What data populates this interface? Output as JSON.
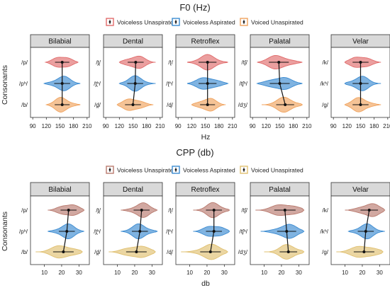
{
  "chart_data": [
    {
      "type": "violin",
      "title": "F0 (Hz)",
      "xlabel": "Hz",
      "ylabel": "Consonants",
      "xlim": [
        85,
        215
      ],
      "xticks": [
        90,
        120,
        150,
        180,
        210
      ],
      "grid": false,
      "legend_placement": "top-center",
      "colors": {
        "Voiceless Unaspirated": "#e06b6b",
        "Voiceless Aspirated": "#3b8bd1",
        "Voiced Unaspirated": "#f0a35e"
      },
      "series_names": [
        "Voiceless Unaspirated",
        "Voiceless Aspirated",
        "Voiced Unaspirated"
      ],
      "panels": [
        {
          "title": "Bilabial",
          "labels": [
            "/p/",
            "/pʰ/",
            "/b/"
          ],
          "medians": [
            155,
            155,
            155
          ],
          "ranges": [
            [
              118,
              190
            ],
            [
              115,
              195
            ],
            [
              120,
              195
            ]
          ]
        },
        {
          "title": "Dental",
          "labels": [
            "/t̪/",
            "/t̪ʰ/",
            "/d̪/"
          ],
          "medians": [
            156,
            155,
            150
          ],
          "ranges": [
            [
              120,
              200
            ],
            [
              120,
              200
            ],
            [
              115,
              195
            ]
          ]
        },
        {
          "title": "Retroflex",
          "labels": [
            "/ʈ/",
            "/ʈʰ/",
            "/ɖ/"
          ],
          "medians": [
            155,
            155,
            155
          ],
          "ranges": [
            [
              110,
              200
            ],
            [
              110,
              200
            ],
            [
              120,
              195
            ]
          ]
        },
        {
          "title": "Palatal",
          "labels": [
            "/tʃ/",
            "/tʃʰ/",
            "/dʒ/"
          ],
          "medians": [
            148,
            150,
            162
          ],
          "ranges": [
            [
              100,
              200
            ],
            [
              100,
              200
            ],
            [
              110,
              200
            ]
          ]
        },
        {
          "title": "Velar",
          "labels": [
            "/k/",
            "/kʰ/",
            "/g/"
          ],
          "medians": [
            150,
            150,
            150
          ],
          "ranges": [
            [
              115,
              195
            ],
            [
              115,
              195
            ],
            [
              115,
              195
            ]
          ]
        }
      ]
    },
    {
      "type": "violin",
      "title": "CPP (db)",
      "xlabel": "db",
      "ylabel": "Consonants",
      "xlim": [
        2,
        36
      ],
      "xticks": [
        10,
        20,
        30
      ],
      "grid": false,
      "legend_placement": "top-center",
      "colors": {
        "Voiceless Unaspirated": "#b97a6e",
        "Voiceless Aspirated": "#3b8bd1",
        "Voiced Unaspirated": "#e0c070"
      },
      "series_names": [
        "Voiceless Unaspirated",
        "Voiceless Aspirated",
        "Voiced Unaspirated"
      ],
      "panels": [
        {
          "title": "Bilabial",
          "labels": [
            "/p/",
            "/pʰ/",
            "/b/"
          ],
          "medians": [
            24,
            23,
            21
          ],
          "ranges": [
            [
              12,
              33
            ],
            [
              12,
              33
            ],
            [
              5,
              32
            ]
          ]
        },
        {
          "title": "Dental",
          "labels": [
            "/t̪/",
            "/t̪ʰ/",
            "/d̪/"
          ],
          "medians": [
            24,
            23,
            21
          ],
          "ranges": [
            [
              12,
              33
            ],
            [
              12,
              33
            ],
            [
              5,
              32
            ]
          ]
        },
        {
          "title": "Retroflex",
          "labels": [
            "/ʈ/",
            "/ʈʰ/",
            "/ɖ/"
          ],
          "medians": [
            24,
            24,
            22
          ],
          "ranges": [
            [
              12,
              33
            ],
            [
              12,
              33
            ],
            [
              5,
              32
            ]
          ]
        },
        {
          "title": "Palatal",
          "labels": [
            "/tʃ/",
            "/tʃʰ/",
            "/dʒ/"
          ],
          "medians": [
            22,
            23,
            24
          ],
          "ranges": [
            [
              5,
              33
            ],
            [
              8,
              33
            ],
            [
              10,
              33
            ]
          ]
        },
        {
          "title": "Velar",
          "labels": [
            "/k/",
            "/kʰ/",
            "/g/"
          ],
          "medians": [
            24,
            22,
            21
          ],
          "ranges": [
            [
              10,
              33
            ],
            [
              12,
              33
            ],
            [
              5,
              32
            ]
          ]
        }
      ]
    }
  ]
}
